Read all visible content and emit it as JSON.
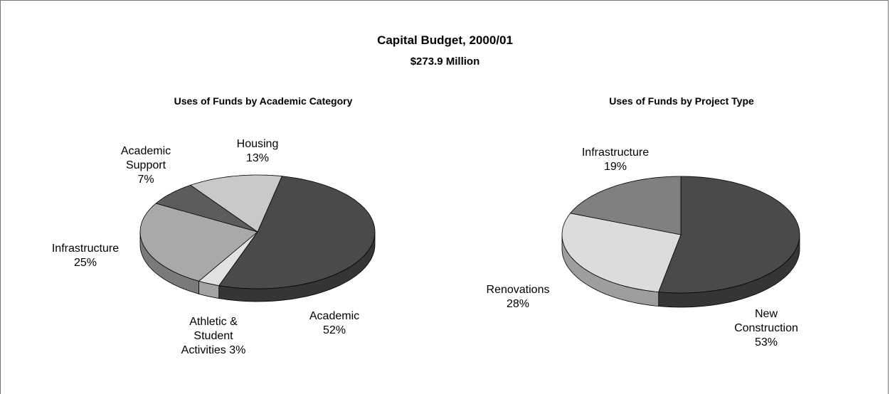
{
  "title": "Capital Budget, 2000/01",
  "subtitle": "$273.9 Million",
  "chart_data": [
    {
      "type": "pie",
      "title": "Uses of Funds by Academic Category",
      "categories": [
        "Academic",
        "Athletic & Student Activities",
        "Infrastructure",
        "Academic Support",
        "Housing"
      ],
      "values": [
        52,
        3,
        25,
        7,
        13
      ],
      "value_labels": [
        "52%",
        "3%",
        "25%",
        "7%",
        "13%"
      ],
      "colors": [
        "#4a4a4a",
        "#e2e2e2",
        "#a9a9a9",
        "#5c5c5c",
        "#c9c9c9"
      ]
    },
    {
      "type": "pie",
      "title": "Uses of Funds by Project Type",
      "categories": [
        "New Construction",
        "Renovations",
        "Infrastructure"
      ],
      "values": [
        53,
        28,
        19
      ],
      "value_labels": [
        "53%",
        "28%",
        "19%"
      ],
      "colors": [
        "#4a4a4a",
        "#dcdcdc",
        "#808080"
      ]
    }
  ]
}
